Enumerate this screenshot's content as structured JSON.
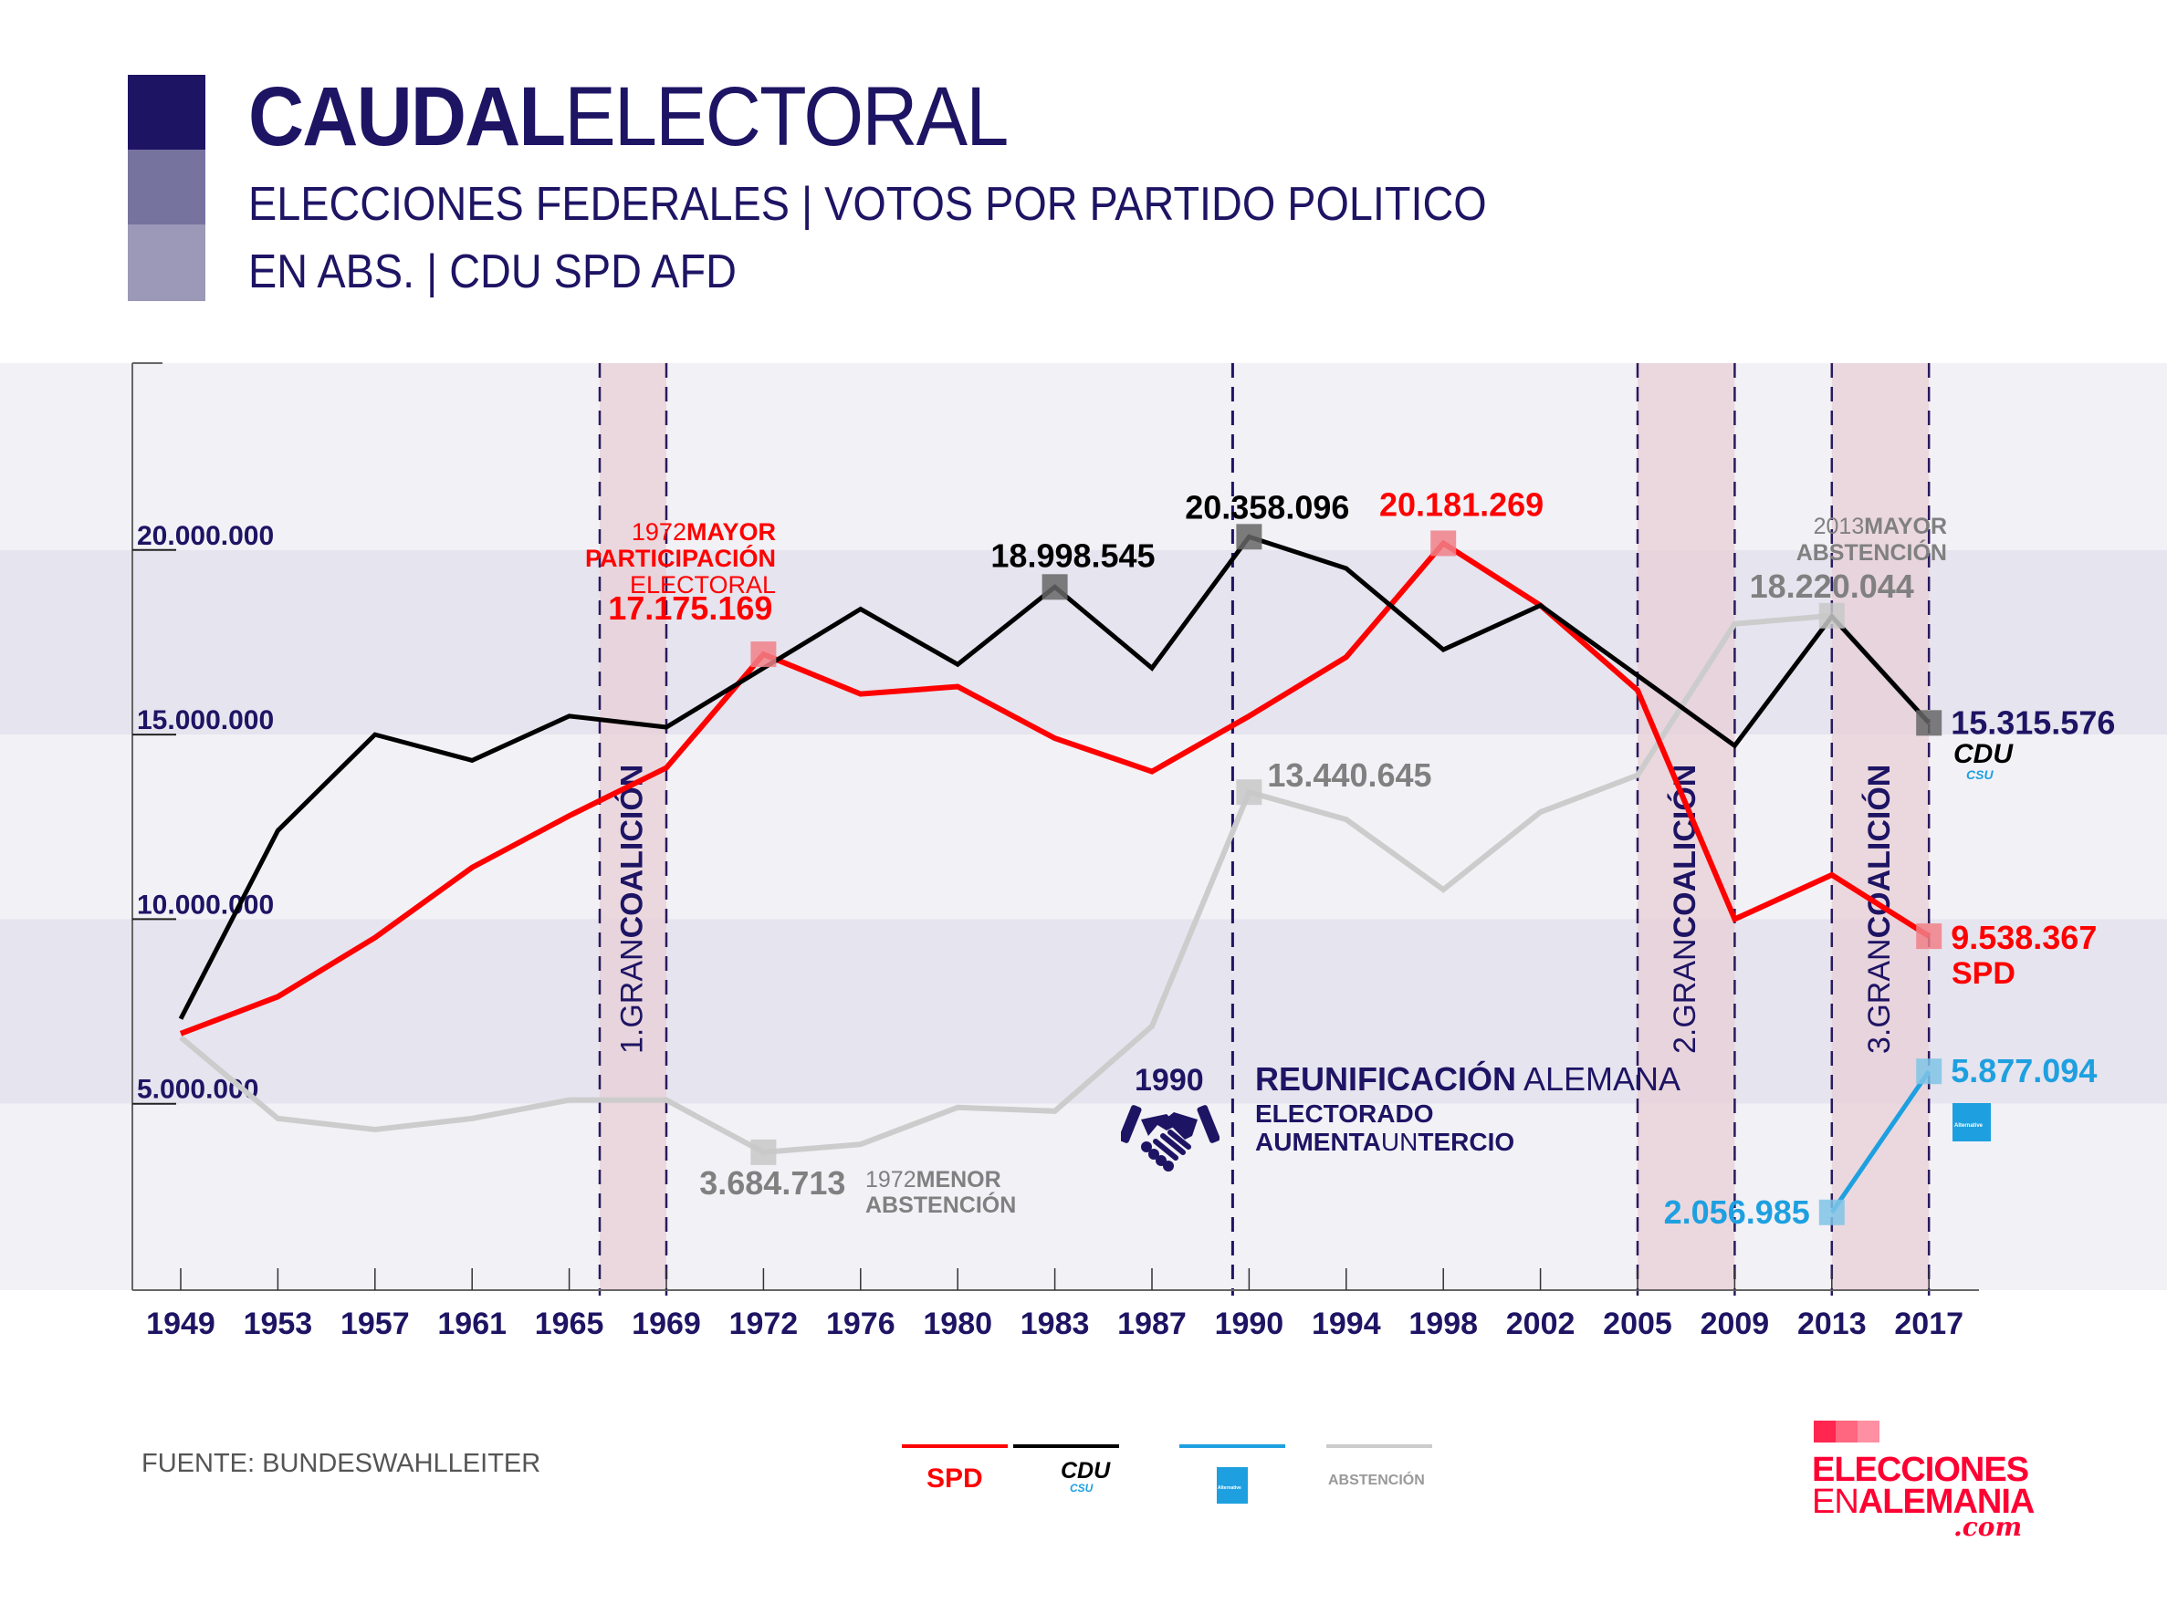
{
  "header": {
    "title_bold": "CAUDAL",
    "title_regular": "ELECTORAL",
    "subtitle_line1": "ELECCIONES FEDERALES | VOTOS POR PARTIDO POLITICO",
    "subtitle_line2": "EN ABS. | CDU SPD AFD",
    "accent_colors": [
      "#1e1464",
      "#77739f",
      "#9c98b8"
    ]
  },
  "chart_data": {
    "type": "line",
    "title": "CAUDALELECTORAL",
    "xlabel": "",
    "ylabel": "",
    "ylim": [
      0,
      22000000
    ],
    "yticks": [
      5000000,
      10000000,
      15000000,
      20000000
    ],
    "ytick_labels": [
      "5.000.000",
      "10.000.000",
      "15.000.000",
      "20.000.000"
    ],
    "x": [
      "1949",
      "1953",
      "1957",
      "1961",
      "1965",
      "1969",
      "1972",
      "1976",
      "1980",
      "1983",
      "1987",
      "1990",
      "1994",
      "1998",
      "2002",
      "2005",
      "2009",
      "2013",
      "2017"
    ],
    "grid": "alternating horizontal bands",
    "series": [
      {
        "name": "CDU/CSU",
        "color": "#000000",
        "values": [
          7300000,
          12400000,
          15000000,
          14300000,
          15500000,
          15200000,
          16800000,
          18400000,
          16900000,
          18998545,
          16800000,
          20358096,
          19500000,
          17300000,
          18500000,
          16600000,
          14700000,
          18200000,
          15315576
        ]
      },
      {
        "name": "SPD",
        "color": "#ff0000",
        "values": [
          6900000,
          7900000,
          9500000,
          11400000,
          12800000,
          14100000,
          17175169,
          16100000,
          16300000,
          14900000,
          14000000,
          15500000,
          17100000,
          20181269,
          18500000,
          16200000,
          10000000,
          11200000,
          9538367
        ]
      },
      {
        "name": "Abstención",
        "color": "#cccccc",
        "values": [
          6800000,
          4600000,
          4300000,
          4600000,
          5100000,
          5100000,
          3684713,
          3900000,
          4900000,
          4800000,
          7100000,
          13440645,
          12700000,
          10800000,
          12900000,
          13900000,
          18000000,
          18220044,
          15300000
        ]
      },
      {
        "name": "AfD",
        "color": "#1ea0e0",
        "values": [
          null,
          null,
          null,
          null,
          null,
          null,
          null,
          null,
          null,
          null,
          null,
          null,
          null,
          null,
          null,
          null,
          null,
          2056985,
          5877094
        ]
      }
    ],
    "highlighted_points": [
      {
        "series": "SPD",
        "x": "1972",
        "label": "17.175.169"
      },
      {
        "series": "CDU/CSU",
        "x": "1983",
        "label": "18.998.545"
      },
      {
        "series": "CDU/CSU",
        "x": "1990",
        "label": "20.358.096"
      },
      {
        "series": "SPD",
        "x": "1998",
        "label": "20.181.269"
      },
      {
        "series": "Abstención",
        "x": "1972",
        "label": "3.684.713"
      },
      {
        "series": "Abstención",
        "x": "1990",
        "label": "13.440.645"
      },
      {
        "series": "Abstención",
        "x": "2013",
        "label": "18.220.044"
      },
      {
        "series": "CDU/CSU",
        "x": "2017",
        "label": "15.315.576"
      },
      {
        "series": "SPD",
        "x": "2017",
        "label": "9.538.367"
      },
      {
        "series": "AfD",
        "x": "2013",
        "label": "2.056.985"
      },
      {
        "series": "AfD",
        "x": "2017",
        "label": "5.877.094"
      }
    ],
    "shaded_periods": [
      {
        "from": "1966",
        "to": "1969",
        "label_num": "1.",
        "label_light": "GRAN",
        "label_bold": "COALICIÓN"
      },
      {
        "from": "2005",
        "to": "2009",
        "label_num": "2.",
        "label_light": "GRAN",
        "label_bold": "COALICIÓN"
      },
      {
        "from": "2013",
        "to": "2017",
        "label_num": "3.",
        "label_light": "GRAN",
        "label_bold": "COALICIÓN"
      }
    ],
    "annotations": {
      "spd_1972": {
        "year": "1972",
        "bold": "MAYOR",
        "line2": "PARTICIPACIÓN",
        "line3": "ELECTORAL"
      },
      "abst_1972": {
        "year": "1972",
        "bold": "MENOR",
        "line2": "ABSTENCIÓN"
      },
      "abst_2013": {
        "year": "2013",
        "bold": "MAYOR",
        "line2": "ABSTENCIÓN"
      },
      "reunification": {
        "year": "1990",
        "bold": "REUNIFICACIÓN",
        "regular": "ALEMANA",
        "line2": "ELECTORADO",
        "line3_bold": "AUMENTA",
        "line3_light": "UN",
        "line3_end": "TERCIO"
      },
      "end_labels": {
        "cdu": "CDU",
        "csu": "CSU",
        "spd": "SPD",
        "afd_logo_text": "Alternative"
      }
    },
    "legend": [
      {
        "label": "SPD",
        "color": "#ff0000"
      },
      {
        "label": "CDU",
        "sublabel": "CSU",
        "color": "#000000"
      },
      {
        "label": "Alternative",
        "color": "#1ea0e0"
      },
      {
        "label": "ABSTENCIÓN",
        "color": "#cccccc"
      }
    ],
    "legend_position": "bottom-center"
  },
  "footer": {
    "source": "FUENTE: BUNDESWAHLLEITER",
    "logo_line1": "ELECCIONES",
    "logo_line2_bold": "EN",
    "logo_line2_rest": "ALEMANIA",
    "logo_line3": ".com"
  }
}
